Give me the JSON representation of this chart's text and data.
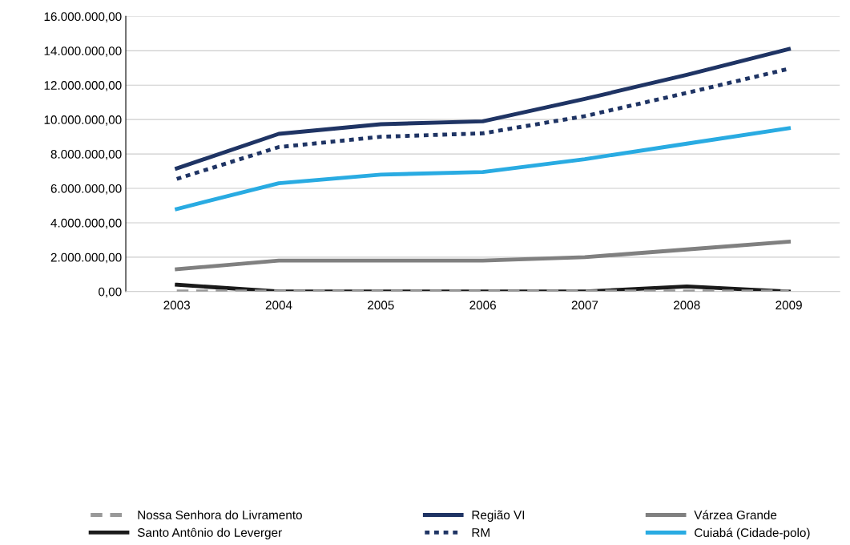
{
  "chart_data": {
    "type": "line",
    "categories": [
      "2003",
      "2004",
      "2005",
      "2006",
      "2007",
      "2008",
      "2009"
    ],
    "series": [
      {
        "name": "Nossa Senhora do Livramento",
        "color": "#999999",
        "line_style": "dashed",
        "values": [
          0,
          0,
          0,
          0,
          0,
          0,
          0
        ]
      },
      {
        "name": "Santo Antônio do Leverger",
        "color": "#1a1a1a",
        "line_style": "solid",
        "values": [
          400000,
          0,
          0,
          0,
          0,
          300000,
          0
        ]
      },
      {
        "name": "Região VI",
        "color": "#1f3464",
        "line_style": "solid",
        "values": [
          7160000,
          9170000,
          9730000,
          9900000,
          11200000,
          12600000,
          14100000
        ]
      },
      {
        "name": "RM",
        "color": "#1f3464",
        "line_style": "dotted",
        "values": [
          6550000,
          8400000,
          9000000,
          9200000,
          10200000,
          11550000,
          12950000
        ]
      },
      {
        "name": "Várzea Grande",
        "color": "#808080",
        "line_style": "solid",
        "values": [
          1300000,
          1800000,
          1800000,
          1800000,
          2000000,
          2450000,
          2900000
        ]
      },
      {
        "name": "Cuiabá (Cidade-polo)",
        "color": "#29abe2",
        "line_style": "solid",
        "values": [
          4800000,
          6300000,
          6800000,
          6950000,
          7700000,
          8600000,
          9500000
        ]
      }
    ],
    "ylim": [
      0,
      16000000
    ],
    "yticks": [
      {
        "value": 0,
        "label": "0,00"
      },
      {
        "value": 2000000,
        "label": "2.000.000,00"
      },
      {
        "value": 4000000,
        "label": "4.000.000,00"
      },
      {
        "value": 6000000,
        "label": "6.000.000,00"
      },
      {
        "value": 8000000,
        "label": "8.000.000,00"
      },
      {
        "value": 10000000,
        "label": "10.000.000,00"
      },
      {
        "value": 12000000,
        "label": "12.000.000,00"
      },
      {
        "value": 14000000,
        "label": "14.000.000,00"
      },
      {
        "value": 16000000,
        "label": "16.000.000,00"
      }
    ],
    "grid": "y",
    "legend": "bottom",
    "marker": "none"
  }
}
